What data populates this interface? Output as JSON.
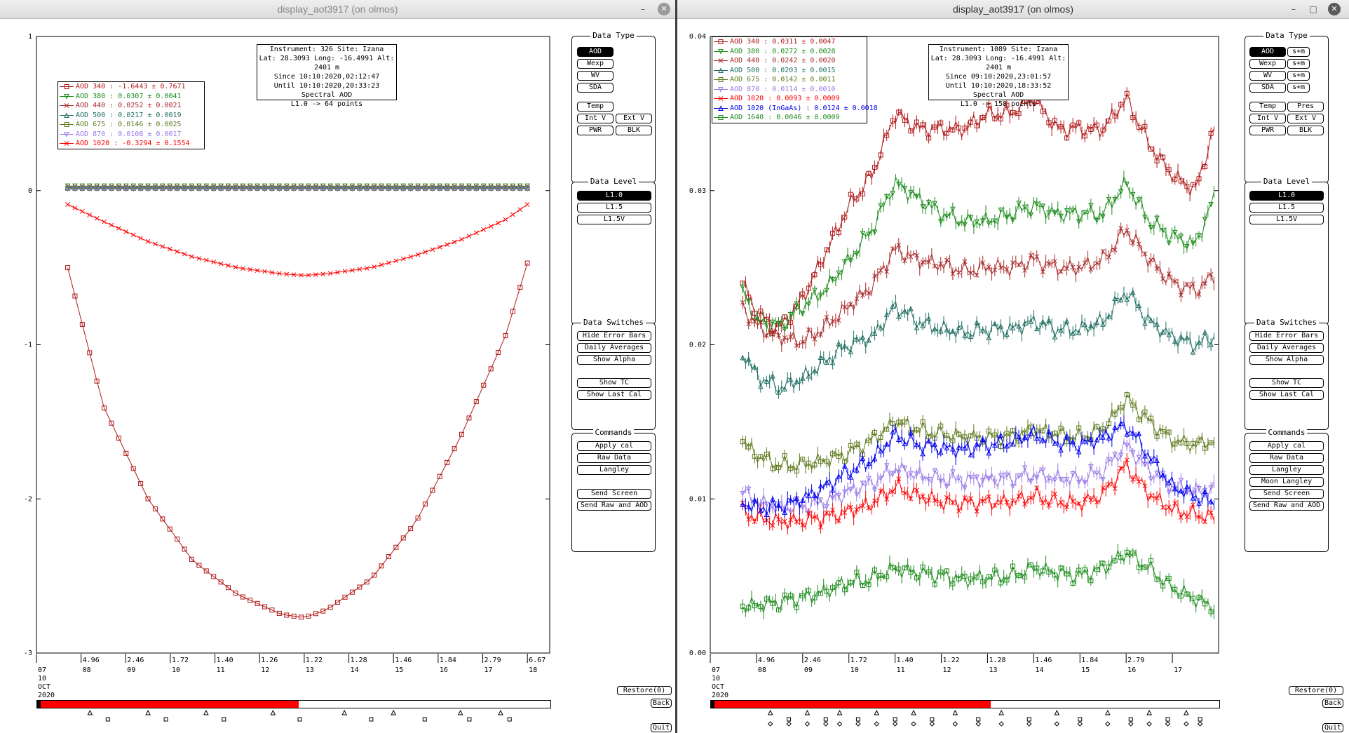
{
  "left": {
    "window_title": "display_aot3917 (on olmos)",
    "info": [
      "Instrument: 326 Site: Izana",
      "Lat: 28.3093 Long: -16.4991 Alt: 2401 m",
      "Since 10:10:2020,02:12:47",
      "Until 10:10:2020,20:33:23",
      "Spectral AOD",
      "L1.0 -> 64 points"
    ],
    "legend": [
      {
        "label": "AOD 340",
        "value": " : -1.6443 ± 0.7671",
        "color": "#b01818",
        "marker": "square"
      },
      {
        "label": "AOD 380",
        "value": " : 0.0307 ± 0.0041",
        "color": "#1c8c1c",
        "marker": "tri-down"
      },
      {
        "label": "AOD 440",
        "value": " : 0.0252 ± 0.0021",
        "color": "#a82828",
        "marker": "x"
      },
      {
        "label": "AOD 500",
        "value": " : 0.0217 ± 0.0019",
        "color": "#1f6e62",
        "marker": "tri-up"
      },
      {
        "label": "AOD 675",
        "value": " : 0.0146 ± 0.0025",
        "color": "#5e7a1e",
        "marker": "square"
      },
      {
        "label": "AOD 870",
        "value": " : 0.0108 ± 0.0017",
        "color": "#9a7ae6",
        "marker": "tri-down"
      },
      {
        "label": "AOD 1020",
        "value": " : -0.3294 ± 0.1554",
        "color": "#ff0000",
        "marker": "x"
      }
    ],
    "y_ticks": [
      "1",
      "0",
      "-1",
      "-2",
      "-3"
    ],
    "x_top": [
      "4.96",
      "2.46",
      "1.72",
      "1.40",
      "1.26",
      "1.22",
      "1.28",
      "1.46",
      "1.84",
      "2.79",
      "6.67"
    ],
    "x_hours": [
      "07",
      "08",
      "09",
      "10",
      "11",
      "12",
      "13",
      "14",
      "15",
      "16",
      "17",
      "18"
    ],
    "date_lines": [
      "10",
      "OCT",
      "2020"
    ],
    "progress_fraction": 0.51,
    "right_buttons": [
      "Restore(0)",
      "Back",
      "Quit"
    ],
    "panels": {
      "data_type": {
        "title": "Data Type",
        "buttons": [
          "AOD",
          "Wexp",
          "WV",
          "SDA",
          "Temp",
          "Int V",
          "Ext V",
          "PWR",
          "BLK"
        ]
      },
      "data_level": {
        "title": "Data Level",
        "buttons": [
          "L1.0",
          "L1.5",
          "L1.5V"
        ]
      },
      "data_switches": {
        "title": "Data Switches",
        "buttons": [
          "Hide Error Bars",
          "Daily Averages",
          "Show Alpha",
          "Show TC",
          "Show Last Cal"
        ]
      },
      "commands": {
        "title": "Commands",
        "buttons": [
          "Apply cal",
          "Raw Data",
          "Langley",
          "Send Screen",
          "Send Raw and AOD"
        ]
      }
    }
  },
  "right": {
    "window_title": "display_aot3917 (on olmos)",
    "info": [
      "Instrument: 1089 Site: Izana",
      "Lat: 28.3093 Long: -16.4991 Alt: 2401 m",
      "Since 09:10:2020,23:01:57",
      "Until 10:10:2020,18:33:52",
      "Spectral AOD",
      "L1.0 -> 158 points"
    ],
    "legend": [
      {
        "label": "AOD 340",
        "value": " : 0.0311 ± 0.0047",
        "color": "#b01818",
        "marker": "square"
      },
      {
        "label": "AOD 380",
        "value": " : 0.0272 ± 0.0028",
        "color": "#1c8c1c",
        "marker": "tri-down"
      },
      {
        "label": "AOD 440",
        "value": " : 0.0242 ± 0.0020",
        "color": "#a82828",
        "marker": "x"
      },
      {
        "label": "AOD 500",
        "value": " : 0.0203 ± 0.0015",
        "color": "#1f6e62",
        "marker": "tri-up"
      },
      {
        "label": "AOD 675",
        "value": " : 0.0142 ± 0.0011",
        "color": "#5e7a1e",
        "marker": "square"
      },
      {
        "label": "AOD 870",
        "value": " : 0.0114 ± 0.0010",
        "color": "#9a7ae6",
        "marker": "tri-down"
      },
      {
        "label": "AOD 1020",
        "value": " : 0.0093 ± 0.0009",
        "color": "#ff0000",
        "marker": "x"
      },
      {
        "label": "AOD 1020 (InGaAs)",
        "value": " : 0.0124 ± 0.0018",
        "color": "#0000ee",
        "marker": "tri-up"
      },
      {
        "label": "AOD 1640",
        "value": " : 0.0046 ± 0.0009",
        "color": "#1c8c1c",
        "marker": "square"
      }
    ],
    "y_ticks": [
      "0.04",
      "0.03",
      "0.02",
      "0.01",
      "0.00"
    ],
    "x_top": [
      "4.96",
      "2.46",
      "1.72",
      "1.40",
      "1.22",
      "1.28",
      "1.46",
      "1.84",
      "2.79"
    ],
    "x_hours": [
      "07",
      "08",
      "09",
      "10",
      "11",
      "12",
      "13",
      "14",
      "15",
      "16",
      "17"
    ],
    "date_lines": [
      "10",
      "OCT",
      "2020"
    ],
    "progress_fraction": 0.55,
    "right_buttons": [
      "Restore(0)",
      "Back",
      "Quit"
    ],
    "panels": {
      "data_type": {
        "title": "Data Type",
        "buttons": [
          "AOD",
          "s+m",
          "Wexp",
          "s+m",
          "WV",
          "s+m",
          "SDA",
          "s+m",
          "Temp",
          "Pres",
          "Int V",
          "Ext V",
          "PWR",
          "BLK"
        ]
      },
      "data_level": {
        "title": "Data Level",
        "buttons": [
          "L1.0",
          "L1.5",
          "L1.5V"
        ]
      },
      "data_switches": {
        "title": "Data Switches",
        "buttons": [
          "Hide Error Bars",
          "Daily Averages",
          "Show Alpha",
          "Show TC",
          "Show Last Cal"
        ]
      },
      "commands": {
        "title": "Commands",
        "buttons": [
          "Apply cal",
          "Raw Data",
          "Langley",
          "Moon Langley",
          "Send Screen",
          "Send Raw and AOD"
        ]
      }
    }
  },
  "chart_data": [
    {
      "type": "line",
      "xlabel": "",
      "ylabel": "",
      "ylim": [
        -3,
        1
      ],
      "xlim": [
        7,
        18.5
      ],
      "grid": false,
      "legend_position": "top-left",
      "series": [
        {
          "name": "AOD 340",
          "x": [
            7.7,
            8.5,
            9.5,
            10.5,
            11.5,
            12.5,
            13.0,
            13.5,
            14.5,
            15.5,
            16.5,
            17.5,
            18.0
          ],
          "values": [
            -0.5,
            -1.4,
            -2.0,
            -2.4,
            -2.62,
            -2.75,
            -2.77,
            -2.72,
            -2.52,
            -2.15,
            -1.6,
            -0.95,
            -0.47
          ]
        },
        {
          "name": "AOD 380",
          "x": [
            7.7,
            10,
            12.5,
            15,
            18.0
          ],
          "values": [
            0.03,
            0.03,
            0.03,
            0.03,
            0.03
          ]
        },
        {
          "name": "AOD 440",
          "x": [
            7.7,
            10,
            12.5,
            15,
            18.0
          ],
          "values": [
            0.025,
            0.025,
            0.025,
            0.025,
            0.025
          ]
        },
        {
          "name": "AOD 500",
          "x": [
            7.7,
            10,
            12.5,
            15,
            18.0
          ],
          "values": [
            0.02,
            0.02,
            0.02,
            0.02,
            0.02
          ]
        },
        {
          "name": "AOD 675",
          "x": [
            7.7,
            10,
            12.5,
            15,
            18.0
          ],
          "values": [
            0.015,
            0.015,
            0.015,
            0.015,
            0.015
          ]
        },
        {
          "name": "AOD 870",
          "x": [
            7.7,
            10,
            12.5,
            15,
            18.0
          ],
          "values": [
            0.01,
            0.01,
            0.01,
            0.01,
            0.01
          ]
        },
        {
          "name": "AOD 1020",
          "x": [
            7.7,
            8.5,
            9.5,
            10.5,
            11.5,
            12.5,
            13.0,
            13.5,
            14.5,
            15.5,
            16.5,
            17.5,
            18.0
          ],
          "values": [
            -0.09,
            -0.2,
            -0.33,
            -0.43,
            -0.5,
            -0.54,
            -0.55,
            -0.54,
            -0.5,
            -0.42,
            -0.32,
            -0.19,
            -0.09
          ]
        }
      ]
    },
    {
      "type": "line",
      "xlabel": "",
      "ylabel": "",
      "ylim": [
        0.0,
        0.04
      ],
      "xlim": [
        7,
        18
      ],
      "grid": false,
      "legend_position": "top-left",
      "series": [
        {
          "name": "AOD 340",
          "x": [
            7.7,
            8.0,
            8.5,
            9.0,
            9.5,
            10.0,
            10.5,
            11.0,
            11.5,
            12.0,
            12.5,
            13.0,
            13.5,
            14.0,
            14.5,
            15.0,
            15.5,
            16.0,
            16.5,
            17.0,
            17.5,
            17.9
          ],
          "values": [
            0.024,
            0.022,
            0.021,
            0.023,
            0.026,
            0.029,
            0.031,
            0.035,
            0.034,
            0.034,
            0.034,
            0.035,
            0.035,
            0.036,
            0.034,
            0.034,
            0.034,
            0.036,
            0.033,
            0.031,
            0.03,
            0.034
          ]
        },
        {
          "name": "AOD 380",
          "x": [
            7.7,
            8.0,
            8.5,
            9.0,
            9.5,
            10.0,
            10.5,
            11.0,
            11.5,
            12.0,
            12.5,
            13.0,
            13.5,
            14.0,
            14.5,
            15.0,
            15.5,
            16.0,
            16.5,
            17.0,
            17.5,
            17.9
          ],
          "values": [
            0.0235,
            0.0215,
            0.0212,
            0.0225,
            0.0236,
            0.0255,
            0.0275,
            0.0305,
            0.0295,
            0.0285,
            0.028,
            0.028,
            0.0285,
            0.029,
            0.0285,
            0.0285,
            0.0285,
            0.0305,
            0.028,
            0.027,
            0.0265,
            0.0295
          ]
        },
        {
          "name": "AOD 440",
          "x": [
            7.7,
            8.0,
            8.5,
            9.0,
            9.5,
            10.0,
            10.5,
            11.0,
            11.5,
            12.0,
            12.5,
            13.0,
            13.5,
            14.0,
            14.5,
            15.0,
            15.5,
            16.0,
            16.5,
            17.0,
            17.5,
            17.9
          ],
          "values": [
            0.0225,
            0.0212,
            0.0205,
            0.0202,
            0.0212,
            0.0225,
            0.0238,
            0.0262,
            0.0255,
            0.0252,
            0.0248,
            0.025,
            0.025,
            0.0255,
            0.025,
            0.025,
            0.0255,
            0.0275,
            0.0255,
            0.024,
            0.0235,
            0.0245
          ]
        },
        {
          "name": "AOD 500",
          "x": [
            7.7,
            8.0,
            8.5,
            9.0,
            9.5,
            10.0,
            10.5,
            11.0,
            11.5,
            12.0,
            12.5,
            13.0,
            13.5,
            14.0,
            14.5,
            15.0,
            15.5,
            16.0,
            16.5,
            17.0,
            17.5,
            17.9
          ],
          "values": [
            0.0195,
            0.018,
            0.0172,
            0.0178,
            0.019,
            0.02,
            0.0205,
            0.0225,
            0.0215,
            0.021,
            0.0208,
            0.021,
            0.021,
            0.0215,
            0.021,
            0.021,
            0.0215,
            0.0235,
            0.0215,
            0.0205,
            0.02,
            0.0205
          ]
        },
        {
          "name": "AOD 675",
          "x": [
            7.7,
            8.0,
            8.5,
            9.0,
            9.5,
            10.0,
            10.5,
            11.0,
            11.5,
            12.0,
            12.5,
            13.0,
            13.5,
            14.0,
            14.5,
            15.0,
            15.5,
            16.0,
            16.5,
            17.0,
            17.5,
            17.9
          ],
          "values": [
            0.0138,
            0.0128,
            0.0122,
            0.0122,
            0.0125,
            0.013,
            0.0138,
            0.015,
            0.0145,
            0.0142,
            0.014,
            0.014,
            0.014,
            0.0145,
            0.0142,
            0.014,
            0.0145,
            0.0165,
            0.015,
            0.0138,
            0.0135,
            0.0138
          ]
        },
        {
          "name": "AOD 870",
          "x": [
            7.7,
            8.0,
            8.5,
            9.0,
            9.5,
            10.0,
            10.5,
            11.0,
            11.5,
            12.0,
            12.5,
            13.0,
            13.5,
            14.0,
            14.5,
            15.0,
            15.5,
            16.0,
            16.5,
            17.0,
            17.5,
            17.9
          ],
          "values": [
            0.0105,
            0.0098,
            0.0094,
            0.0095,
            0.0098,
            0.0105,
            0.011,
            0.012,
            0.0115,
            0.0113,
            0.0112,
            0.0113,
            0.0113,
            0.0116,
            0.0113,
            0.0113,
            0.0118,
            0.0135,
            0.0118,
            0.0108,
            0.0105,
            0.0106
          ]
        },
        {
          "name": "AOD 1020",
          "x": [
            7.7,
            8.0,
            8.5,
            9.0,
            9.5,
            10.0,
            10.5,
            11.0,
            11.5,
            12.0,
            12.5,
            13.0,
            13.5,
            14.0,
            14.5,
            15.0,
            15.5,
            16.0,
            16.5,
            17.0,
            17.5,
            17.9
          ],
          "values": [
            0.0092,
            0.0088,
            0.0085,
            0.0086,
            0.0088,
            0.0092,
            0.0097,
            0.0108,
            0.0102,
            0.0098,
            0.0097,
            0.0098,
            0.0098,
            0.0102,
            0.0098,
            0.0097,
            0.0103,
            0.0122,
            0.0103,
            0.0093,
            0.009,
            0.0088
          ]
        },
        {
          "name": "AOD 1020 (InGaAs)",
          "x": [
            7.7,
            8.0,
            8.5,
            9.0,
            9.5,
            10.0,
            10.5,
            11.0,
            11.5,
            12.0,
            12.5,
            13.0,
            13.5,
            14.0,
            14.5,
            15.0,
            15.5,
            16.0,
            16.5,
            17.0,
            17.5,
            17.9
          ],
          "values": [
            0.0098,
            0.0094,
            0.0095,
            0.01,
            0.0108,
            0.0118,
            0.0125,
            0.0142,
            0.0135,
            0.0133,
            0.0132,
            0.0135,
            0.0137,
            0.0142,
            0.0137,
            0.0135,
            0.014,
            0.0148,
            0.0128,
            0.0108,
            0.0102,
            0.0097
          ]
        },
        {
          "name": "AOD 1640",
          "x": [
            7.7,
            8.0,
            8.5,
            9.0,
            9.5,
            10.0,
            10.5,
            11.0,
            11.5,
            12.0,
            12.5,
            13.0,
            13.5,
            14.0,
            14.5,
            15.0,
            15.5,
            16.0,
            16.5,
            17.0,
            17.5,
            17.9
          ],
          "values": [
            0.003,
            0.0031,
            0.0033,
            0.0036,
            0.004,
            0.0046,
            0.0048,
            0.0055,
            0.0052,
            0.005,
            0.0048,
            0.0049,
            0.005,
            0.0055,
            0.0052,
            0.005,
            0.0055,
            0.0065,
            0.0055,
            0.0042,
            0.0035,
            0.003
          ]
        }
      ]
    }
  ]
}
